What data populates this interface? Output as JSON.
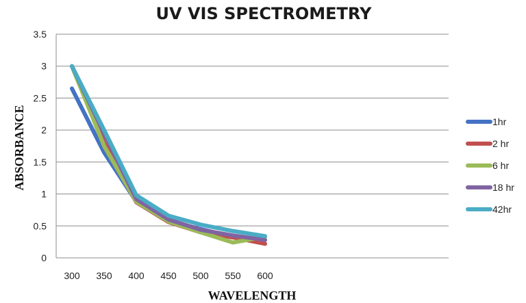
{
  "chart_data": {
    "type": "line",
    "title": "UV VIS SPECTROMETRY",
    "xlabel": "WAVELENGTH",
    "ylabel": "ABSORBANCE",
    "x": [
      300,
      350,
      400,
      450,
      500,
      550,
      600
    ],
    "ylim": [
      0,
      3.5
    ],
    "yticks": [
      "0",
      "0.5",
      "1",
      "1.5",
      "2",
      "2.5",
      "3",
      "3.5"
    ],
    "grid": true,
    "legend_position": "right",
    "series": [
      {
        "name": "1hr",
        "color": "#4472c4",
        "values": [
          2.65,
          1.65,
          0.88,
          0.58,
          0.45,
          0.33,
          0.28
        ]
      },
      {
        "name": "2 hr",
        "color": "#c0504d",
        "values": [
          3.0,
          1.8,
          0.87,
          0.56,
          0.4,
          0.32,
          0.22
        ]
      },
      {
        "name": "6 hr",
        "color": "#9bbb59",
        "values": [
          3.0,
          1.75,
          0.88,
          0.57,
          0.4,
          0.24,
          0.33
        ]
      },
      {
        "name": "18 hr",
        "color": "#8064a2",
        "values": [
          3.0,
          1.95,
          0.92,
          0.6,
          0.44,
          0.35,
          0.28
        ]
      },
      {
        "name": "42hr",
        "color": "#4bacc6",
        "values": [
          3.0,
          2.0,
          0.98,
          0.66,
          0.52,
          0.42,
          0.34
        ]
      }
    ]
  }
}
